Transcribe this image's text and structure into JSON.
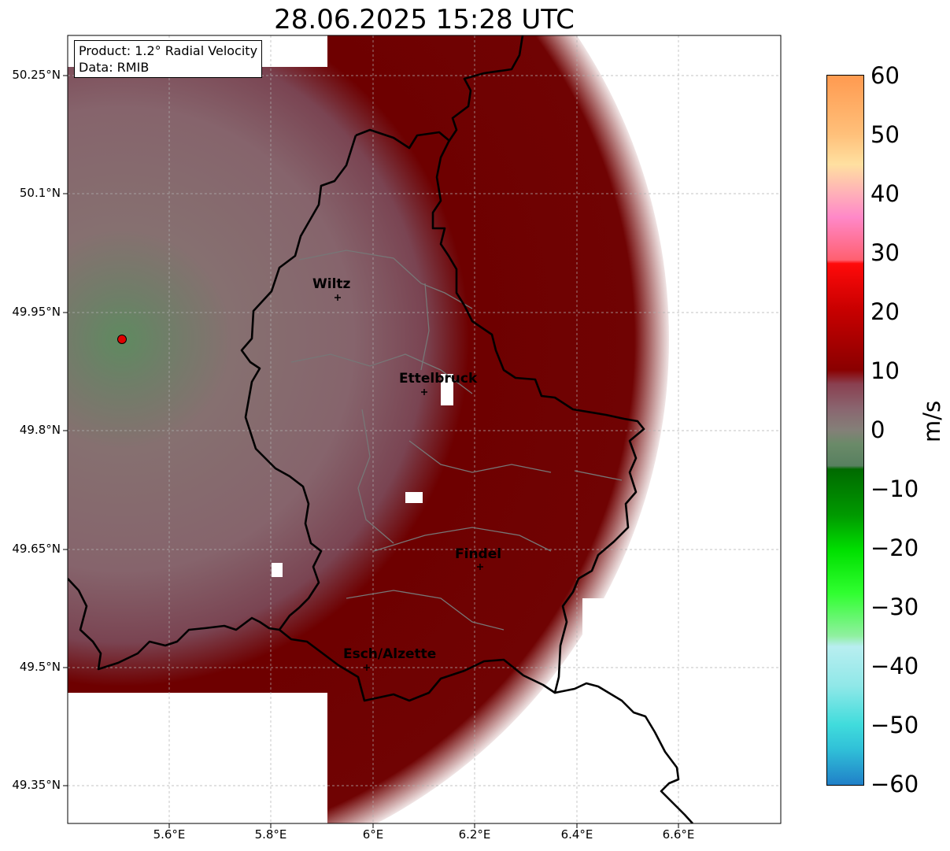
{
  "title": "28.06.2025 15:28 UTC",
  "product": {
    "line1": "Product: 1.2° Radial Velocity",
    "line2": "Data: RMIB"
  },
  "map": {
    "lon_range": [
      5.4,
      6.8
    ],
    "lat_range": [
      49.3,
      50.3
    ],
    "lat_ticks": [
      "50.25°N",
      "50.1°N",
      "49.95°N",
      "49.8°N",
      "49.65°N",
      "49.5°N",
      "49.35°N"
    ],
    "lon_ticks": [
      "5.6°E",
      "5.8°E",
      "6°E",
      "6.2°E",
      "6.4°E",
      "6.6°E"
    ],
    "radar_site": {
      "lon": 5.505,
      "lat": 49.914
    },
    "cities": [
      {
        "name": "Wiltz",
        "lon": 5.932,
        "lat": 49.966
      },
      {
        "name": "Ettelbruck",
        "lon": 6.104,
        "lat": 49.847
      },
      {
        "name": "Findel",
        "lon": 6.211,
        "lat": 49.627
      },
      {
        "name": "Esch/Alzette",
        "lon": 5.98,
        "lat": 49.496
      }
    ],
    "colors": {
      "near_zero": "#8a6670",
      "receding": "#6e0000",
      "approaching": "#5f8660",
      "border": "#000000",
      "canton": "#777777"
    }
  },
  "colorbar": {
    "unit": "m/s",
    "min": -60,
    "max": 60,
    "ticks": [
      "60",
      "50",
      "40",
      "30",
      "20",
      "10",
      "0",
      "−10",
      "−20",
      "−30",
      "−40",
      "−50",
      "−60"
    ]
  }
}
